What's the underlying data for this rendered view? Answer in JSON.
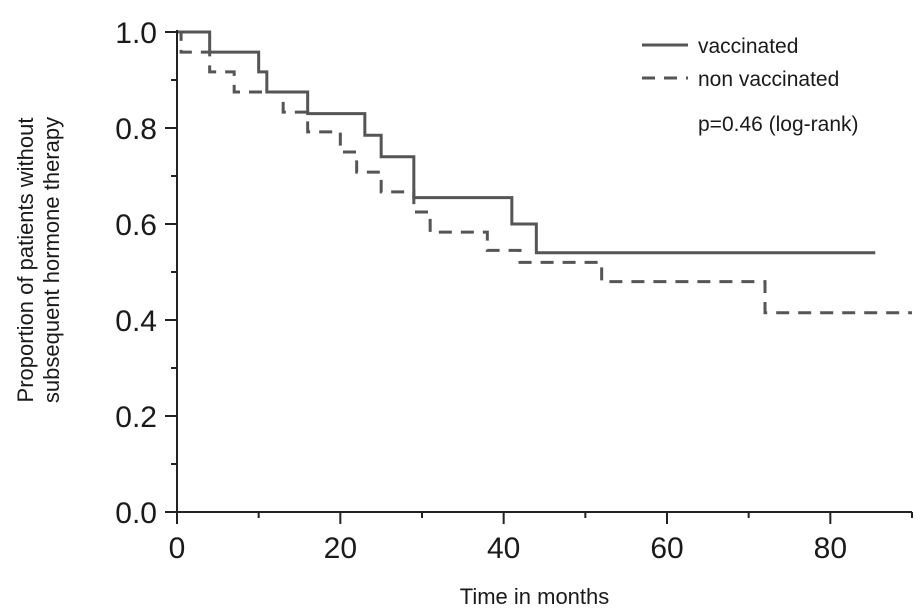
{
  "chart_data": {
    "type": "line",
    "xlabel": "Time in months",
    "ylabel_lines": [
      "Proportion of patients without",
      "subsequent hormone therapy"
    ],
    "xlim": [
      0,
      90
    ],
    "ylim": [
      0,
      1.0
    ],
    "x_ticks": [
      0,
      20,
      40,
      60,
      80
    ],
    "x_tick_labels": [
      "0",
      "20",
      "40",
      "60",
      "80"
    ],
    "y_ticks": [
      0.0,
      0.2,
      0.4,
      0.6,
      0.8,
      1.0
    ],
    "y_tick_labels": [
      "0.0",
      "0.2",
      "0.4",
      "0.6",
      "0.8",
      "1.0"
    ],
    "grid": false,
    "legend_position": "top-right",
    "annotation": "p=0.46 (log-rank)",
    "series": [
      {
        "name": "vaccinated",
        "style": "solid",
        "color": "#555555",
        "x": [
          0,
          4,
          10,
          11,
          16,
          23,
          25,
          29,
          41,
          44,
          85.5
        ],
        "y": [
          1.0,
          0.958,
          0.917,
          0.875,
          0.83,
          0.785,
          0.74,
          0.655,
          0.6,
          0.54,
          0.54
        ]
      },
      {
        "name": "non vaccinated",
        "style": "dashed",
        "color": "#555555",
        "x": [
          0,
          0.5,
          4,
          7,
          13,
          16,
          20,
          22,
          25,
          29,
          31,
          38,
          42,
          52,
          72,
          90
        ],
        "y": [
          1.0,
          0.958,
          0.917,
          0.875,
          0.833,
          0.792,
          0.75,
          0.708,
          0.667,
          0.625,
          0.583,
          0.545,
          0.52,
          0.48,
          0.415,
          0.415
        ]
      }
    ]
  }
}
